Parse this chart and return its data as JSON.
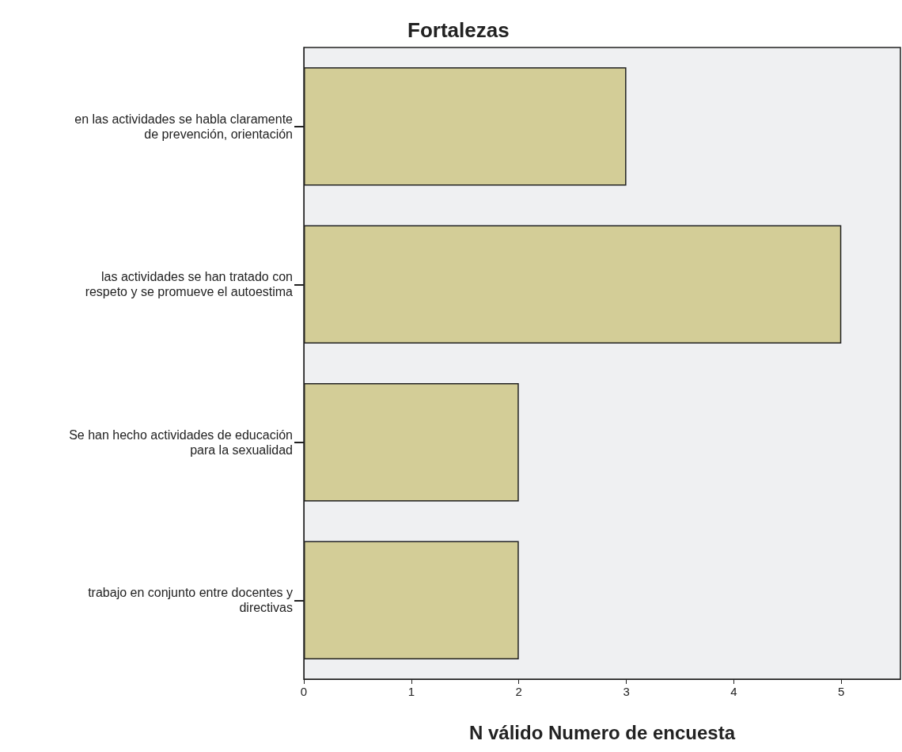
{
  "chart_data": {
    "type": "bar",
    "orientation": "horizontal",
    "title": "Fortalezas",
    "xlabel": "N válido Numero de encuesta",
    "categories": [
      "en las actividades se habla claramente\nde prevención, orientación",
      "las actividades se han tratado con\nrespeto y se promueve el autoestima",
      "Se han hecho actividades de educación\npara la sexualidad",
      "trabajo en conjunto entre docentes y\ndirectivas"
    ],
    "values": [
      3,
      5,
      2,
      2
    ],
    "color": "#d3cd97",
    "xlim": [
      0,
      5.55
    ],
    "xticks": [
      0,
      1,
      2,
      3,
      4,
      5
    ],
    "grid": false
  }
}
